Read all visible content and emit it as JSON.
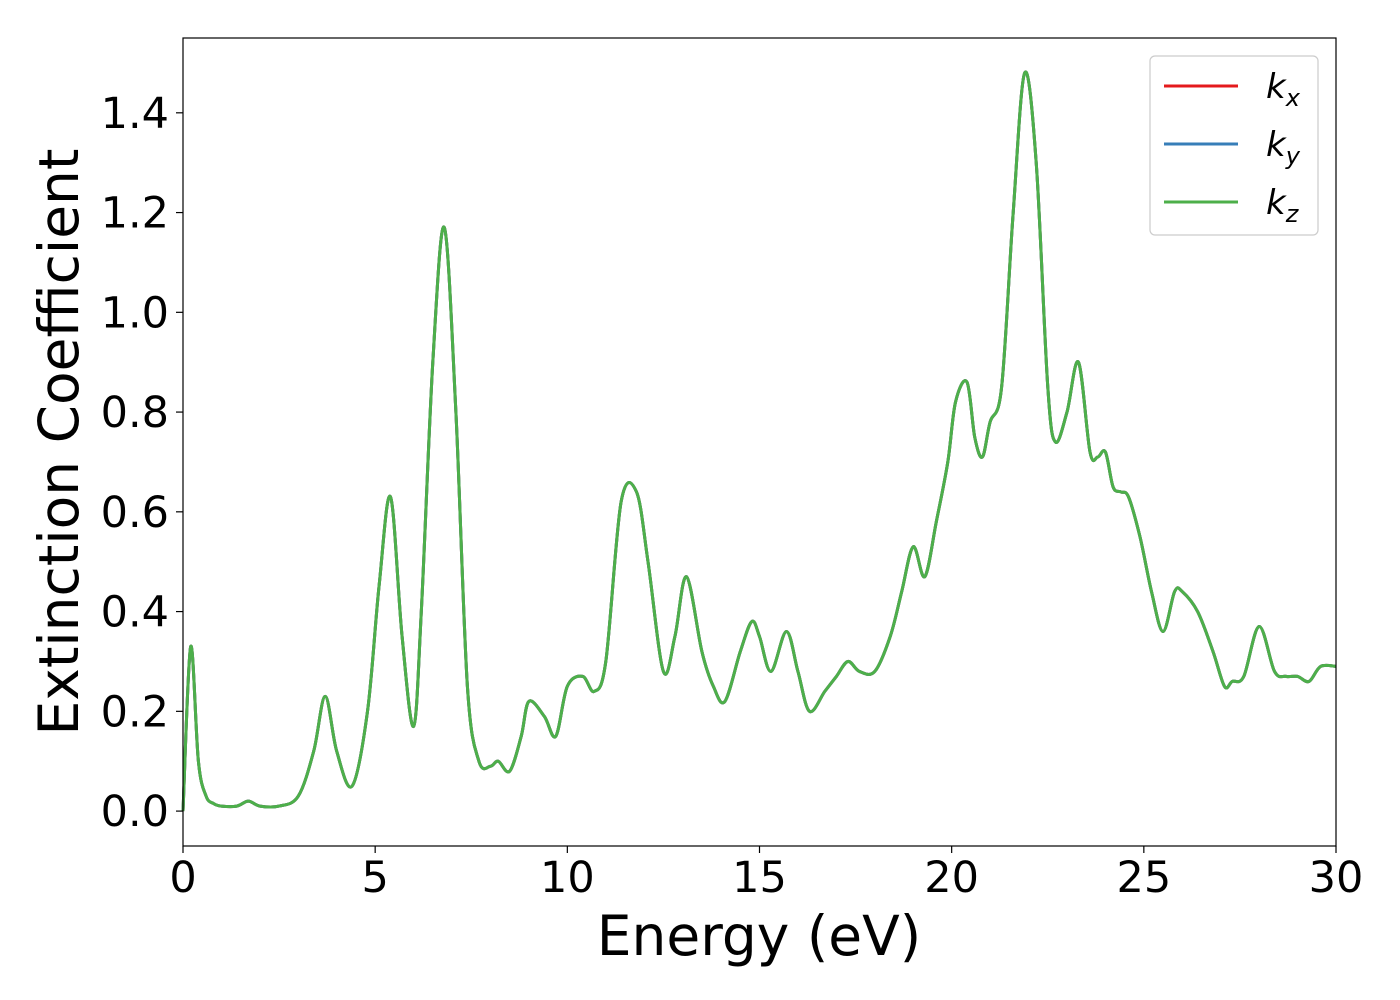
{
  "chart_data": {
    "type": "line",
    "title": "",
    "xlabel": "Energy (eV)",
    "ylabel": "Extinction Coefficient",
    "xlim": [
      0,
      30
    ],
    "ylim": [
      -0.07,
      1.55
    ],
    "xticks": [
      0,
      5,
      10,
      15,
      20,
      25,
      30
    ],
    "xtick_labels": [
      "0",
      "5",
      "10",
      "15",
      "20",
      "25",
      "30"
    ],
    "yticks": [
      0.0,
      0.2,
      0.4,
      0.6,
      0.8,
      1.0,
      1.2,
      1.4
    ],
    "ytick_labels": [
      "0.0",
      "0.2",
      "0.4",
      "0.6",
      "0.8",
      "1.0",
      "1.2",
      "1.4"
    ],
    "grid": false,
    "legend_position": "top-right",
    "series": [
      {
        "name": "k_x",
        "label_base": "k",
        "label_sub": "x",
        "color": "#e41a1c",
        "x": [
          0,
          0.2,
          0.4,
          0.6,
          0.8,
          1.0,
          1.4,
          1.7,
          2.0,
          2.5,
          3.0,
          3.4,
          3.7,
          4.0,
          4.4,
          4.8,
          5.1,
          5.4,
          5.7,
          6.0,
          6.2,
          6.5,
          6.8,
          7.1,
          7.4,
          7.7,
          8.0,
          8.2,
          8.5,
          8.8,
          9.0,
          9.4,
          9.7,
          10.0,
          10.4,
          10.7,
          11.0,
          11.4,
          11.8,
          12.1,
          12.5,
          12.8,
          13.1,
          13.5,
          13.8,
          14.1,
          14.5,
          14.8,
          15.0,
          15.3,
          15.7,
          16.0,
          16.3,
          16.7,
          17.0,
          17.3,
          17.6,
          18.0,
          18.4,
          18.7,
          19.0,
          19.3,
          19.6,
          19.9,
          20.1,
          20.4,
          20.6,
          20.8,
          21.0,
          21.3,
          21.6,
          21.9,
          22.2,
          22.5,
          22.7,
          23.0,
          23.3,
          23.6,
          23.8,
          24.0,
          24.2,
          24.4,
          24.6,
          24.9,
          25.2,
          25.5,
          25.8,
          26.0,
          26.4,
          26.8,
          27.1,
          27.3,
          27.6,
          28.0,
          28.4,
          28.7,
          29.0,
          29.3,
          29.6,
          30.0
        ],
        "y": [
          0.0,
          0.33,
          0.1,
          0.03,
          0.015,
          0.01,
          0.01,
          0.02,
          0.01,
          0.01,
          0.03,
          0.12,
          0.23,
          0.12,
          0.05,
          0.2,
          0.45,
          0.63,
          0.35,
          0.17,
          0.4,
          0.9,
          1.17,
          0.8,
          0.25,
          0.1,
          0.09,
          0.1,
          0.08,
          0.15,
          0.22,
          0.19,
          0.15,
          0.25,
          0.27,
          0.24,
          0.3,
          0.62,
          0.64,
          0.5,
          0.28,
          0.35,
          0.47,
          0.32,
          0.25,
          0.22,
          0.32,
          0.38,
          0.35,
          0.28,
          0.36,
          0.28,
          0.2,
          0.24,
          0.27,
          0.3,
          0.28,
          0.28,
          0.35,
          0.44,
          0.53,
          0.47,
          0.58,
          0.7,
          0.82,
          0.86,
          0.75,
          0.71,
          0.78,
          0.85,
          1.2,
          1.48,
          1.3,
          0.85,
          0.74,
          0.8,
          0.9,
          0.72,
          0.71,
          0.72,
          0.65,
          0.64,
          0.63,
          0.55,
          0.44,
          0.36,
          0.44,
          0.44,
          0.4,
          0.32,
          0.25,
          0.26,
          0.27,
          0.37,
          0.28,
          0.27,
          0.27,
          0.26,
          0.29,
          0.29
        ]
      },
      {
        "name": "k_y",
        "label_base": "k",
        "label_sub": "y",
        "color": "#377eb8",
        "x": [
          0,
          0.2,
          0.4,
          0.6,
          0.8,
          1.0,
          1.4,
          1.7,
          2.0,
          2.5,
          3.0,
          3.4,
          3.7,
          4.0,
          4.4,
          4.8,
          5.1,
          5.4,
          5.7,
          6.0,
          6.2,
          6.5,
          6.8,
          7.1,
          7.4,
          7.7,
          8.0,
          8.2,
          8.5,
          8.8,
          9.0,
          9.4,
          9.7,
          10.0,
          10.4,
          10.7,
          11.0,
          11.4,
          11.8,
          12.1,
          12.5,
          12.8,
          13.1,
          13.5,
          13.8,
          14.1,
          14.5,
          14.8,
          15.0,
          15.3,
          15.7,
          16.0,
          16.3,
          16.7,
          17.0,
          17.3,
          17.6,
          18.0,
          18.4,
          18.7,
          19.0,
          19.3,
          19.6,
          19.9,
          20.1,
          20.4,
          20.6,
          20.8,
          21.0,
          21.3,
          21.6,
          21.9,
          22.2,
          22.5,
          22.7,
          23.0,
          23.3,
          23.6,
          23.8,
          24.0,
          24.2,
          24.4,
          24.6,
          24.9,
          25.2,
          25.5,
          25.8,
          26.0,
          26.4,
          26.8,
          27.1,
          27.3,
          27.6,
          28.0,
          28.4,
          28.7,
          29.0,
          29.3,
          29.6,
          30.0
        ],
        "y": [
          0.0,
          0.33,
          0.1,
          0.03,
          0.015,
          0.01,
          0.01,
          0.02,
          0.01,
          0.01,
          0.03,
          0.12,
          0.23,
          0.12,
          0.05,
          0.2,
          0.45,
          0.63,
          0.35,
          0.17,
          0.4,
          0.9,
          1.17,
          0.8,
          0.25,
          0.1,
          0.09,
          0.1,
          0.08,
          0.15,
          0.22,
          0.19,
          0.15,
          0.25,
          0.27,
          0.24,
          0.3,
          0.62,
          0.64,
          0.5,
          0.28,
          0.35,
          0.47,
          0.32,
          0.25,
          0.22,
          0.32,
          0.38,
          0.35,
          0.28,
          0.36,
          0.28,
          0.2,
          0.24,
          0.27,
          0.3,
          0.28,
          0.28,
          0.35,
          0.44,
          0.53,
          0.47,
          0.58,
          0.7,
          0.82,
          0.86,
          0.75,
          0.71,
          0.78,
          0.85,
          1.2,
          1.48,
          1.3,
          0.85,
          0.74,
          0.8,
          0.9,
          0.72,
          0.71,
          0.72,
          0.65,
          0.64,
          0.63,
          0.55,
          0.44,
          0.36,
          0.44,
          0.44,
          0.4,
          0.32,
          0.25,
          0.26,
          0.27,
          0.37,
          0.28,
          0.27,
          0.27,
          0.26,
          0.29,
          0.29
        ]
      },
      {
        "name": "k_z",
        "label_base": "k",
        "label_sub": "z",
        "color": "#4daf4a",
        "x": [
          0,
          0.2,
          0.4,
          0.6,
          0.8,
          1.0,
          1.4,
          1.7,
          2.0,
          2.5,
          3.0,
          3.4,
          3.7,
          4.0,
          4.4,
          4.8,
          5.1,
          5.4,
          5.7,
          6.0,
          6.2,
          6.5,
          6.8,
          7.1,
          7.4,
          7.7,
          8.0,
          8.2,
          8.5,
          8.8,
          9.0,
          9.4,
          9.7,
          10.0,
          10.4,
          10.7,
          11.0,
          11.4,
          11.8,
          12.1,
          12.5,
          12.8,
          13.1,
          13.5,
          13.8,
          14.1,
          14.5,
          14.8,
          15.0,
          15.3,
          15.7,
          16.0,
          16.3,
          16.7,
          17.0,
          17.3,
          17.6,
          18.0,
          18.4,
          18.7,
          19.0,
          19.3,
          19.6,
          19.9,
          20.1,
          20.4,
          20.6,
          20.8,
          21.0,
          21.3,
          21.6,
          21.9,
          22.2,
          22.5,
          22.7,
          23.0,
          23.3,
          23.6,
          23.8,
          24.0,
          24.2,
          24.4,
          24.6,
          24.9,
          25.2,
          25.5,
          25.8,
          26.0,
          26.4,
          26.8,
          27.1,
          27.3,
          27.6,
          28.0,
          28.4,
          28.7,
          29.0,
          29.3,
          29.6,
          30.0
        ],
        "y": [
          0.0,
          0.33,
          0.1,
          0.03,
          0.015,
          0.01,
          0.01,
          0.02,
          0.01,
          0.01,
          0.03,
          0.12,
          0.23,
          0.12,
          0.05,
          0.2,
          0.45,
          0.63,
          0.35,
          0.17,
          0.4,
          0.9,
          1.17,
          0.8,
          0.25,
          0.1,
          0.09,
          0.1,
          0.08,
          0.15,
          0.22,
          0.19,
          0.15,
          0.25,
          0.27,
          0.24,
          0.3,
          0.62,
          0.64,
          0.5,
          0.28,
          0.35,
          0.47,
          0.32,
          0.25,
          0.22,
          0.32,
          0.38,
          0.35,
          0.28,
          0.36,
          0.28,
          0.2,
          0.24,
          0.27,
          0.3,
          0.28,
          0.28,
          0.35,
          0.44,
          0.53,
          0.47,
          0.58,
          0.7,
          0.82,
          0.86,
          0.75,
          0.71,
          0.78,
          0.85,
          1.2,
          1.48,
          1.3,
          0.85,
          0.74,
          0.8,
          0.9,
          0.72,
          0.71,
          0.72,
          0.65,
          0.64,
          0.63,
          0.55,
          0.44,
          0.36,
          0.44,
          0.44,
          0.4,
          0.32,
          0.25,
          0.26,
          0.27,
          0.37,
          0.28,
          0.27,
          0.27,
          0.26,
          0.29,
          0.29
        ]
      }
    ]
  }
}
